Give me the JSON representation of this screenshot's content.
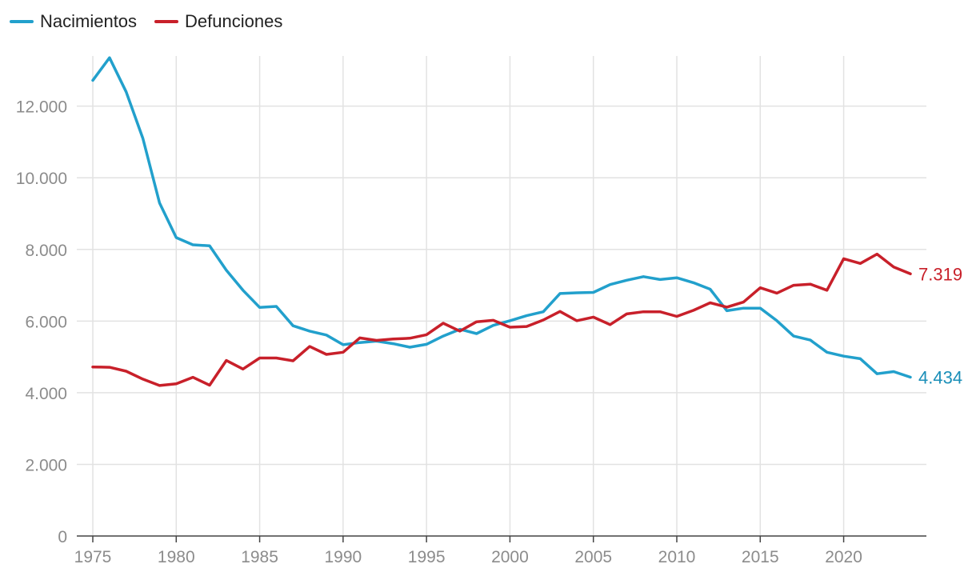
{
  "chart_data": {
    "type": "line",
    "title": "",
    "xlabel": "",
    "ylabel": "",
    "legend_position": "top-left",
    "grid": true,
    "xlim": [
      1975,
      2024
    ],
    "ylim": [
      0,
      13400
    ],
    "x_ticks": [
      1975,
      1980,
      1985,
      1990,
      1995,
      2000,
      2005,
      2010,
      2015,
      2020
    ],
    "x_tick_labels": [
      "1975",
      "1980",
      "1985",
      "1990",
      "1995",
      "2000",
      "2005",
      "2010",
      "2015",
      "2020"
    ],
    "y_ticks": [
      0,
      2000,
      4000,
      6000,
      8000,
      10000,
      12000
    ],
    "y_tick_labels": [
      "0",
      "2.000",
      "4.000",
      "6.000",
      "8.000",
      "10.000",
      "12.000"
    ],
    "x": [
      1975,
      1976,
      1977,
      1978,
      1979,
      1980,
      1981,
      1982,
      1983,
      1984,
      1985,
      1986,
      1987,
      1988,
      1989,
      1990,
      1991,
      1992,
      1993,
      1994,
      1995,
      1996,
      1997,
      1998,
      1999,
      2000,
      2001,
      2002,
      2003,
      2004,
      2005,
      2006,
      2007,
      2008,
      2009,
      2010,
      2011,
      2012,
      2013,
      2014,
      2015,
      2016,
      2017,
      2018,
      2019,
      2020,
      2021,
      2022,
      2023,
      2024
    ],
    "series": [
      {
        "name": "Nacimientos",
        "color": "#22a0cc",
        "end_label": "4.434",
        "end_label_color": "#1b8fb8",
        "values": [
          12720,
          13350,
          12400,
          11100,
          9300,
          8330,
          8130,
          8100,
          7420,
          6860,
          6380,
          6410,
          5870,
          5720,
          5610,
          5340,
          5400,
          5440,
          5370,
          5270,
          5350,
          5580,
          5770,
          5650,
          5880,
          6010,
          6150,
          6260,
          6770,
          6790,
          6800,
          7020,
          7140,
          7240,
          7160,
          7210,
          7070,
          6890,
          6290,
          6360,
          6360,
          6010,
          5580,
          5470,
          5130,
          5020,
          4950,
          4530,
          4590,
          4434
        ]
      },
      {
        "name": "Defunciones",
        "color": "#c8202a",
        "end_label": "7.319",
        "end_label_color": "#c8202a",
        "values": [
          4720,
          4710,
          4600,
          4380,
          4200,
          4250,
          4430,
          4210,
          4900,
          4660,
          4970,
          4970,
          4890,
          5290,
          5070,
          5130,
          5530,
          5460,
          5500,
          5520,
          5620,
          5940,
          5720,
          5980,
          6020,
          5830,
          5850,
          6030,
          6270,
          6010,
          6110,
          5900,
          6200,
          6260,
          6260,
          6130,
          6300,
          6510,
          6390,
          6530,
          6930,
          6780,
          7000,
          7030,
          6860,
          7740,
          7610,
          7870,
          7510,
          7319
        ]
      }
    ]
  }
}
